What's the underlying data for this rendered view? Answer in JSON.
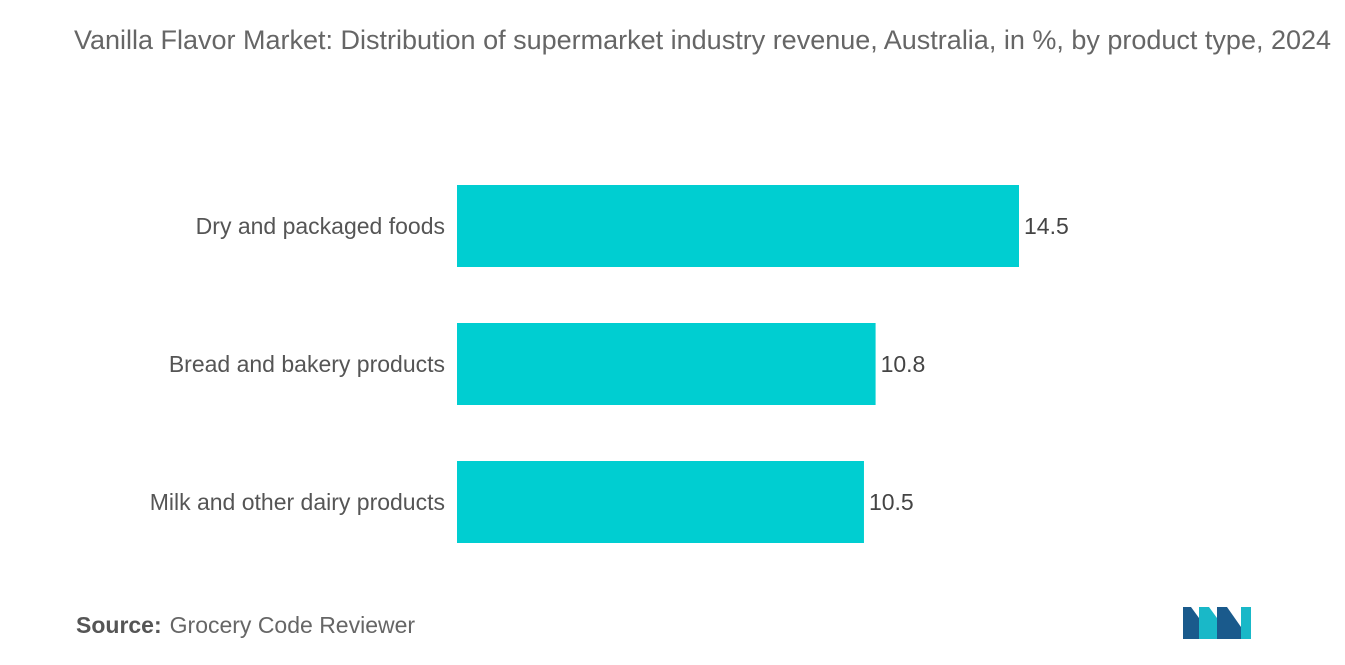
{
  "chart_data": {
    "type": "bar",
    "orientation": "horizontal",
    "title": "Vanilla Flavor Market: Distribution of supermarket industry revenue, Australia, in %, by product type, 2024",
    "categories": [
      "Dry and packaged foods",
      "Bread and bakery products",
      "Milk and other dairy products"
    ],
    "values": [
      14.5,
      10.8,
      10.5
    ],
    "value_labels": [
      "14.5",
      "10.8",
      "10.5"
    ],
    "xlabel": "",
    "ylabel": "",
    "xlim": [
      0,
      14.5
    ],
    "grid": false,
    "legend": "none",
    "bar_color": "#00CED1"
  },
  "source": {
    "label": "Source:",
    "text": "Grocery Code Reviewer"
  },
  "logo": {
    "icon": "mordor-intelligence-logo",
    "colors": [
      "#1A5A8C",
      "#19B8C8"
    ]
  }
}
